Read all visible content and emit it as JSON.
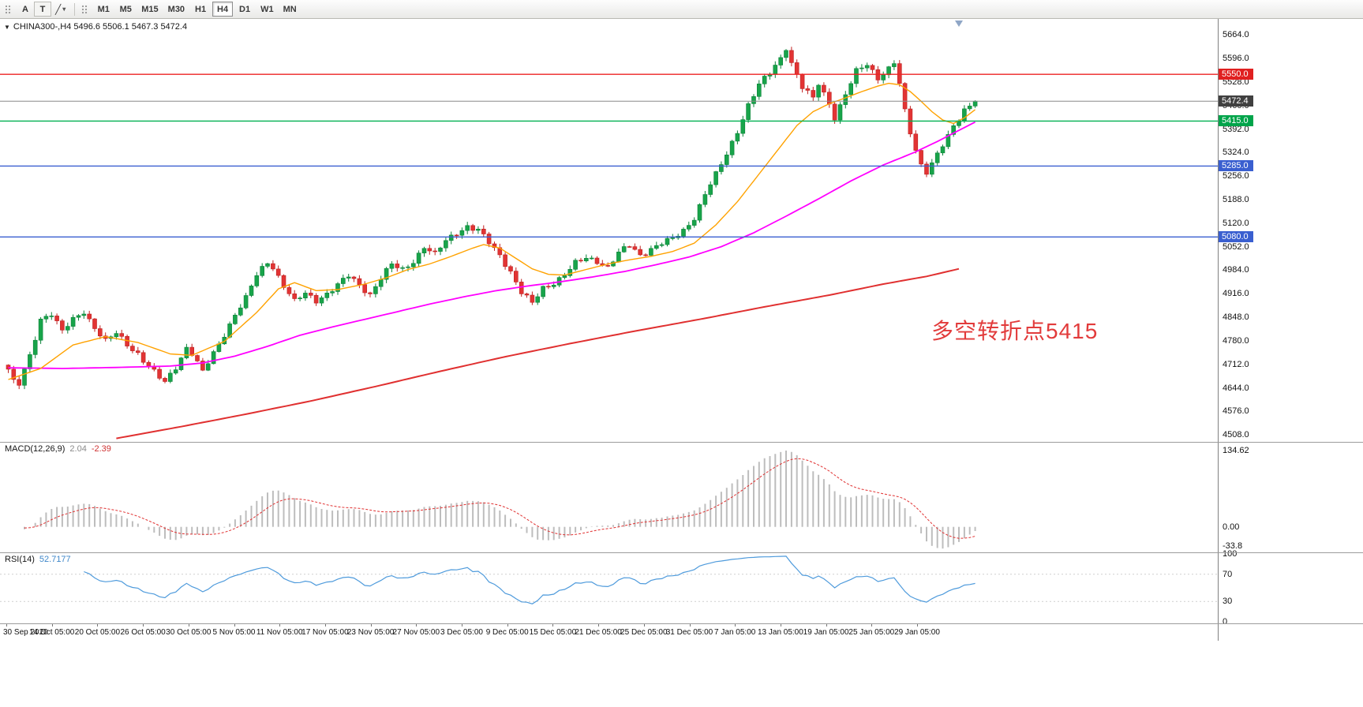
{
  "toolbar": {
    "tools": [
      {
        "name": "annotation-text-tool",
        "label": "A"
      },
      {
        "name": "text-label-tool",
        "label": "T"
      }
    ],
    "draw_tool_icon": "╱",
    "draw_tool_caret": "▾",
    "timeframes": [
      "M1",
      "M5",
      "M15",
      "M30",
      "H1",
      "H4",
      "D1",
      "W1",
      "MN"
    ],
    "active_timeframe": "H4"
  },
  "window": {
    "collapse_arrow": "▼",
    "symbol_line": "CHINA300-,H4 5496.6 5506.1 5467.3 5472.4"
  },
  "chart_data": {
    "type": "candlestick",
    "symbol": "CHINA300-",
    "timeframe": "H4",
    "ohlc": {
      "open": 5496.6,
      "high": 5506.1,
      "low": 5467.3,
      "close": 5472.4
    },
    "bars": 180,
    "price_axis_values": [
      5664,
      5596,
      5528,
      5460,
      5392,
      5324,
      5256,
      5188,
      5120,
      5052,
      4984,
      4916,
      4848,
      4780,
      4712,
      4644,
      4576,
      4508
    ],
    "time_axis_labels": [
      "30 Sep 2020",
      "14 Oct 05:00",
      "20 Oct 05:00",
      "26 Oct 05:00",
      "30 Oct 05:00",
      "5 Nov 05:00",
      "11 Nov 05:00",
      "17 Nov 05:00",
      "23 Nov 05:00",
      "27 Nov 05:00",
      "3 Dec 05:00",
      "9 Dec 05:00",
      "15 Dec 05:00",
      "21 Dec 05:00",
      "25 Dec 05:00",
      "31 Dec 05:00",
      "7 Jan 05:00",
      "13 Jan 05:00",
      "19 Jan 05:00",
      "25 Jan 05:00",
      "29 Jan 05:00"
    ],
    "horizontal_lines": [
      {
        "price": 5550.0,
        "label": "5550.0",
        "color": "#ee2222",
        "tag_bg": "#e02020"
      },
      {
        "price": 5472.4,
        "label": "5472.4",
        "color": "#8a8a8a",
        "tag_bg": "#404040"
      },
      {
        "price": 5415.0,
        "label": "5415.0",
        "color": "#00b050",
        "tag_bg": "#00a44a"
      },
      {
        "price": 5285.0,
        "label": "5285.0",
        "color": "#3a5fd0",
        "tag_bg": "#3a5fd0"
      },
      {
        "price": 5080.0,
        "label": "5080.0",
        "color": "#3a5fd0",
        "tag_bg": "#3a5fd0"
      }
    ],
    "annotation": {
      "text": "多空转折点5415",
      "color": "#e23b3b"
    },
    "candle_colors": {
      "up": "#18a44a",
      "up_border": "#0b8338",
      "down": "#e23434",
      "down_border": "#bf2020"
    },
    "close_anchors": [
      [
        0,
        4698
      ],
      [
        1,
        4660
      ],
      [
        2,
        4652
      ],
      [
        4,
        4735
      ],
      [
        6,
        4845
      ],
      [
        8,
        4860
      ],
      [
        10,
        4805
      ],
      [
        12,
        4840
      ],
      [
        14,
        4866
      ],
      [
        16,
        4820
      ],
      [
        18,
        4778
      ],
      [
        20,
        4800
      ],
      [
        22,
        4770
      ],
      [
        24,
        4745
      ],
      [
        26,
        4705
      ],
      [
        28,
        4672
      ],
      [
        29,
        4658
      ],
      [
        31,
        4705
      ],
      [
        33,
        4762
      ],
      [
        34,
        4745
      ],
      [
        36,
        4688
      ],
      [
        38,
        4742
      ],
      [
        40,
        4800
      ],
      [
        42,
        4858
      ],
      [
        44,
        4902
      ],
      [
        46,
        4968
      ],
      [
        48,
        5008
      ],
      [
        49,
        4995
      ],
      [
        51,
        4940
      ],
      [
        53,
        4892
      ],
      [
        55,
        4915
      ],
      [
        57,
        4898
      ],
      [
        59,
        4918
      ],
      [
        61,
        4940
      ],
      [
        63,
        4966
      ],
      [
        65,
        4942
      ],
      [
        67,
        4916
      ],
      [
        69,
        4962
      ],
      [
        71,
        4998
      ],
      [
        73,
        4985
      ],
      [
        75,
        5012
      ],
      [
        77,
        5052
      ],
      [
        79,
        5028
      ],
      [
        81,
        5068
      ],
      [
        83,
        5094
      ],
      [
        85,
        5112
      ],
      [
        87,
        5098
      ],
      [
        89,
        5062
      ],
      [
        91,
        5028
      ],
      [
        93,
        4982
      ],
      [
        95,
        4920
      ],
      [
        97,
        4886
      ],
      [
        99,
        4932
      ],
      [
        101,
        4950
      ],
      [
        103,
        4972
      ],
      [
        105,
        5002
      ],
      [
        107,
        5018
      ],
      [
        109,
        5012
      ],
      [
        111,
        4994
      ],
      [
        113,
        5032
      ],
      [
        115,
        5054
      ],
      [
        117,
        5028
      ],
      [
        119,
        5048
      ],
      [
        121,
        5062
      ],
      [
        123,
        5072
      ],
      [
        125,
        5098
      ],
      [
        127,
        5138
      ],
      [
        129,
        5205
      ],
      [
        131,
        5258
      ],
      [
        133,
        5318
      ],
      [
        135,
        5388
      ],
      [
        137,
        5462
      ],
      [
        139,
        5518
      ],
      [
        141,
        5552
      ],
      [
        143,
        5598
      ],
      [
        144,
        5630
      ],
      [
        145,
        5585
      ],
      [
        147,
        5512
      ],
      [
        149,
        5478
      ],
      [
        150,
        5522
      ],
      [
        152,
        5468
      ],
      [
        153,
        5428
      ],
      [
        155,
        5492
      ],
      [
        157,
        5556
      ],
      [
        159,
        5578
      ],
      [
        161,
        5542
      ],
      [
        163,
        5568
      ],
      [
        164,
        5584
      ],
      [
        165,
        5520
      ],
      [
        166,
        5440
      ],
      [
        167,
        5380
      ],
      [
        168,
        5330
      ],
      [
        169,
        5290
      ],
      [
        170,
        5272
      ],
      [
        172,
        5320
      ],
      [
        174,
        5368
      ],
      [
        175,
        5395
      ],
      [
        176,
        5420
      ],
      [
        177,
        5448
      ],
      [
        178,
        5462
      ],
      [
        179,
        5472.4
      ]
    ],
    "ma_fast": {
      "color": "#ffa200",
      "anchors": [
        [
          0,
          4668
        ],
        [
          6,
          4700
        ],
        [
          12,
          4768
        ],
        [
          18,
          4792
        ],
        [
          24,
          4775
        ],
        [
          30,
          4742
        ],
        [
          34,
          4738
        ],
        [
          40,
          4778
        ],
        [
          46,
          4862
        ],
        [
          50,
          4930
        ],
        [
          53,
          4948
        ],
        [
          57,
          4925
        ],
        [
          61,
          4928
        ],
        [
          66,
          4944
        ],
        [
          70,
          4962
        ],
        [
          74,
          4986
        ],
        [
          78,
          5002
        ],
        [
          82,
          5024
        ],
        [
          86,
          5048
        ],
        [
          88,
          5058
        ],
        [
          91,
          5048
        ],
        [
          94,
          5018
        ],
        [
          97,
          4988
        ],
        [
          100,
          4972
        ],
        [
          103,
          4970
        ],
        [
          107,
          4986
        ],
        [
          111,
          5002
        ],
        [
          115,
          5014
        ],
        [
          119,
          5024
        ],
        [
          123,
          5038
        ],
        [
          127,
          5062
        ],
        [
          131,
          5115
        ],
        [
          135,
          5182
        ],
        [
          139,
          5262
        ],
        [
          143,
          5342
        ],
        [
          146,
          5402
        ],
        [
          149,
          5442
        ],
        [
          152,
          5465
        ],
        [
          155,
          5482
        ],
        [
          158,
          5500
        ],
        [
          161,
          5516
        ],
        [
          163,
          5524
        ],
        [
          165,
          5520
        ],
        [
          167,
          5500
        ],
        [
          169,
          5472
        ],
        [
          171,
          5442
        ],
        [
          173,
          5418
        ],
        [
          175,
          5408
        ],
        [
          177,
          5424
        ],
        [
          179,
          5448
        ]
      ]
    },
    "ma_mid": {
      "color": "#ff00ff",
      "anchors": [
        [
          0,
          4702
        ],
        [
          10,
          4700
        ],
        [
          20,
          4703
        ],
        [
          30,
          4707
        ],
        [
          36,
          4716
        ],
        [
          42,
          4736
        ],
        [
          48,
          4764
        ],
        [
          54,
          4796
        ],
        [
          60,
          4820
        ],
        [
          66,
          4842
        ],
        [
          72,
          4864
        ],
        [
          78,
          4886
        ],
        [
          84,
          4906
        ],
        [
          90,
          4924
        ],
        [
          96,
          4938
        ],
        [
          102,
          4950
        ],
        [
          108,
          4964
        ],
        [
          114,
          4980
        ],
        [
          120,
          5000
        ],
        [
          126,
          5022
        ],
        [
          132,
          5052
        ],
        [
          138,
          5092
        ],
        [
          144,
          5140
        ],
        [
          150,
          5190
        ],
        [
          156,
          5242
        ],
        [
          162,
          5288
        ],
        [
          168,
          5326
        ],
        [
          172,
          5356
        ],
        [
          176,
          5388
        ],
        [
          179,
          5412
        ]
      ]
    },
    "ma_slow": {
      "color": "#e03030",
      "anchors": [
        [
          20,
          4498
        ],
        [
          32,
          4532
        ],
        [
          44,
          4568
        ],
        [
          56,
          4606
        ],
        [
          68,
          4648
        ],
        [
          80,
          4692
        ],
        [
          92,
          4734
        ],
        [
          104,
          4772
        ],
        [
          116,
          4808
        ],
        [
          128,
          4842
        ],
        [
          140,
          4878
        ],
        [
          152,
          4912
        ],
        [
          162,
          4944
        ],
        [
          170,
          4966
        ],
        [
          176,
          4988
        ]
      ]
    },
    "macd": {
      "label": "MACD(12,26,9)",
      "main_value": "2.04",
      "signal_value": "-2.39",
      "params": [
        12,
        26,
        9
      ],
      "histogram_color": "#bdbdbd",
      "signal_color": "#e03030",
      "axis": [
        {
          "v": 134.62,
          "t": "134.62"
        },
        {
          "v": 0,
          "t": "0.00"
        },
        {
          "v": -33.8,
          "t": "-33.8"
        }
      ]
    },
    "rsi": {
      "label": "RSI(14)",
      "value": "52.7177",
      "period": 14,
      "line_color": "#4f9bdc",
      "axis": [
        {
          "v": 100,
          "t": "100"
        },
        {
          "v": 70,
          "t": "70"
        },
        {
          "v": 30,
          "t": "30"
        },
        {
          "v": 0,
          "t": "0"
        }
      ],
      "levels": [
        70,
        30
      ]
    }
  }
}
